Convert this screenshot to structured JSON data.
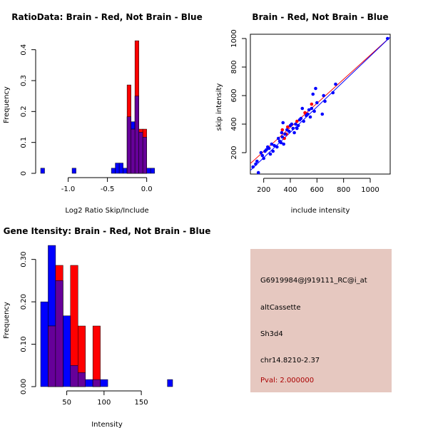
{
  "colors": {
    "red": "#ff0000",
    "blue": "#0000ff",
    "overlap": "#660099",
    "panel_bg": "#e6c8c0",
    "pval": "#aa0000"
  },
  "chart_data": [
    {
      "id": "ratio",
      "type": "bar",
      "title": "RatioData: Brain - Red, Not Brain - Blue",
      "xlabel": "Log2 Ratio Skip/Include",
      "ylabel": "Frequency",
      "xlim": [
        -1.35,
        0.33
      ],
      "ylim": [
        0,
        0.45
      ],
      "xticks": [
        -1.0,
        -0.5,
        0.0
      ],
      "xtick_labels": [
        "-1.0",
        "-0.5",
        "0.0"
      ],
      "yticks": [
        0,
        0.1,
        0.2,
        0.3,
        0.4
      ],
      "ytick_labels": [
        "0",
        "0.1",
        "0.2",
        "0.3",
        "0.4"
      ],
      "series": [
        {
          "name": "Not Brain",
          "color": "blue",
          "bins": [
            [
              -1.35,
              -1.3,
              0.0167
            ],
            [
              -0.95,
              -0.9,
              0.0167
            ],
            [
              -0.45,
              -0.4,
              0.0167
            ],
            [
              -0.4,
              -0.35,
              0.0333
            ],
            [
              -0.35,
              -0.3,
              0.0333
            ],
            [
              -0.3,
              -0.25,
              0.0167
            ],
            [
              -0.25,
              -0.2,
              0.183
            ],
            [
              -0.2,
              -0.15,
              0.167
            ],
            [
              -0.15,
              -0.1,
              0.25
            ],
            [
              -0.1,
              -0.05,
              0.133
            ],
            [
              -0.05,
              0.0,
              0.117
            ],
            [
              0.0,
              0.05,
              0.0167
            ],
            [
              0.05,
              0.1,
              0.0167
            ]
          ]
        },
        {
          "name": "Brain",
          "color": "red",
          "bins": [
            [
              -0.25,
              -0.2,
              0.286
            ],
            [
              -0.2,
              -0.15,
              0.143
            ],
            [
              -0.15,
              -0.1,
              0.429
            ],
            [
              -0.1,
              -0.05,
              0.143
            ],
            [
              -0.05,
              0.0,
              0.143
            ]
          ]
        }
      ]
    },
    {
      "id": "scatter",
      "type": "scatter",
      "title": "Brain - Red, Not Brain - Blue",
      "xlabel": "include intensity",
      "ylabel": "skip intensity",
      "xlim": [
        100,
        1150
      ],
      "ylim": [
        50,
        1030
      ],
      "xticks": [
        200,
        400,
        600,
        800,
        1000
      ],
      "xtick_labels": [
        "200",
        "400",
        "600",
        "800",
        "1000"
      ],
      "yticks": [
        200,
        400,
        600,
        800,
        1000
      ],
      "ytick_labels": [
        "200",
        "400",
        "600",
        "800",
        "1000"
      ],
      "lines": [
        {
          "name": "Brain fit",
          "color": "red",
          "x": [
            60,
            1150
          ],
          "y": [
            90,
            1010
          ]
        },
        {
          "name": "Not Brain fit",
          "color": "blue",
          "x": [
            60,
            1150
          ],
          "y": [
            40,
            1010
          ]
        }
      ],
      "series": [
        {
          "name": "Brain",
          "color": "red",
          "points": [
            [
              340,
              360
            ],
            [
              355,
              300
            ],
            [
              370,
              330
            ],
            [
              380,
              380
            ],
            [
              450,
              420
            ],
            [
              510,
              480
            ],
            [
              560,
              540
            ]
          ]
        },
        {
          "name": "Not Brain",
          "color": "blue",
          "points": [
            [
              120,
              100
            ],
            [
              140,
              120
            ],
            [
              150,
              140
            ],
            [
              160,
              60
            ],
            [
              180,
              200
            ],
            [
              190,
              180
            ],
            [
              200,
              160
            ],
            [
              210,
              210
            ],
            [
              220,
              220
            ],
            [
              230,
              240
            ],
            [
              240,
              230
            ],
            [
              250,
              190
            ],
            [
              260,
              260
            ],
            [
              270,
              210
            ],
            [
              280,
              250
            ],
            [
              300,
              240
            ],
            [
              310,
              300
            ],
            [
              320,
              280
            ],
            [
              330,
              270
            ],
            [
              335,
              340
            ],
            [
              340,
              310
            ],
            [
              345,
              410
            ],
            [
              350,
              260
            ],
            [
              360,
              330
            ],
            [
              375,
              360
            ],
            [
              390,
              350
            ],
            [
              400,
              390
            ],
            [
              410,
              400
            ],
            [
              420,
              370
            ],
            [
              430,
              340
            ],
            [
              440,
              400
            ],
            [
              450,
              370
            ],
            [
              460,
              390
            ],
            [
              470,
              430
            ],
            [
              480,
              440
            ],
            [
              490,
              510
            ],
            [
              500,
              420
            ],
            [
              520,
              460
            ],
            [
              530,
              470
            ],
            [
              540,
              500
            ],
            [
              550,
              450
            ],
            [
              560,
              510
            ],
            [
              570,
              610
            ],
            [
              580,
              490
            ],
            [
              590,
              650
            ],
            [
              600,
              550
            ],
            [
              640,
              470
            ],
            [
              650,
              600
            ],
            [
              660,
              560
            ],
            [
              720,
              620
            ],
            [
              740,
              680
            ],
            [
              1130,
              1000
            ]
          ]
        }
      ]
    },
    {
      "id": "intensity",
      "type": "bar",
      "title": "Gene Itensity: Brain - Red, Not Brain - Blue",
      "xlabel": "Intensity",
      "ylabel": "Frequency",
      "xlim": [
        15,
        192
      ],
      "ylim": [
        0,
        0.36
      ],
      "xticks": [
        50,
        100,
        150
      ],
      "xtick_labels": [
        "50",
        "100",
        "150"
      ],
      "yticks": [
        0,
        0.1,
        0.2,
        0.3
      ],
      "ytick_labels": [
        "0.00",
        "0.10",
        "0.20",
        "0.30"
      ],
      "series": [
        {
          "name": "Not Brain",
          "color": "blue",
          "bins": [
            [
              15,
              25,
              0.2
            ],
            [
              25,
              35,
              0.333
            ],
            [
              35,
              45,
              0.25
            ],
            [
              45,
              55,
              0.167
            ],
            [
              55,
              65,
              0.05
            ],
            [
              65,
              75,
              0.0333
            ],
            [
              75,
              85,
              0.0167
            ],
            [
              85,
              95,
              0.0167
            ],
            [
              95,
              105,
              0.0167
            ],
            [
              185,
              192,
              0.0167
            ]
          ]
        },
        {
          "name": "Brain",
          "color": "red",
          "bins": [
            [
              25,
              35,
              0.143
            ],
            [
              35,
              45,
              0.286
            ],
            [
              55,
              65,
              0.286
            ],
            [
              65,
              75,
              0.143
            ],
            [
              85,
              95,
              0.143
            ]
          ]
        }
      ]
    }
  ],
  "info": {
    "line1": "G6919984@J919111_RC@i_at",
    "line2": "altCassette",
    "line3": "Sh3d4",
    "line4": "chr14.8210-2.37",
    "pval": "Pval: 2.000000"
  }
}
